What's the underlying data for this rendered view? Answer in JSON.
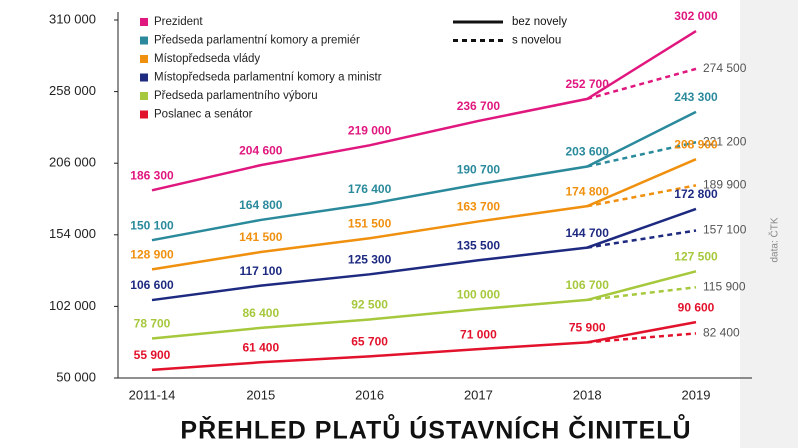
{
  "chart_data": {
    "type": "line",
    "title": "PŘEHLED PLATŮ ÚSTAVNÍCH ČINITELŮ",
    "source": "data: ČTK",
    "categories": [
      "2011-14",
      "2015",
      "2016",
      "2017",
      "2018",
      "2019"
    ],
    "ylim": [
      50000,
      310000
    ],
    "yticks": [
      {
        "value": 50000,
        "label": "50 000"
      },
      {
        "value": 102000,
        "label": "102 000"
      },
      {
        "value": 154000,
        "label": "154 000"
      },
      {
        "value": 206000,
        "label": "206 000"
      },
      {
        "value": 258000,
        "label": "258 000"
      },
      {
        "value": 310000,
        "label": "310 000"
      }
    ],
    "line_styles": [
      {
        "name": "bez novely",
        "dashed": false
      },
      {
        "name": "s novelou",
        "dashed": true
      }
    ],
    "series": [
      {
        "name": "Prezident",
        "color": "#e0177f",
        "values": [
          186300,
          204600,
          219000,
          236700,
          252700,
          302000
        ],
        "value_labels": [
          "186 300",
          "204 600",
          "219 000",
          "236 700",
          "252 700",
          "302 000"
        ],
        "reform_value": 274500,
        "reform_label": "274 500"
      },
      {
        "name": "Předseda parlamentní komory a premiér",
        "color": "#2a8a9c",
        "values": [
          150100,
          164800,
          176400,
          190700,
          203600,
          243300
        ],
        "value_labels": [
          "150 100",
          "164 800",
          "176 400",
          "190 700",
          "203 600",
          "243 300"
        ],
        "reform_value": 221200,
        "reform_label": "221 200"
      },
      {
        "name": "Místopředseda vlády",
        "color": "#f0900f",
        "values": [
          128900,
          141500,
          151500,
          163700,
          174800,
          208900
        ],
        "value_labels": [
          "128 900",
          "141 500",
          "151 500",
          "163 700",
          "174 800",
          "208 900"
        ],
        "reform_value": 189900,
        "reform_label": "189 900"
      },
      {
        "name": "Místopředseda parlamentní komory a ministr",
        "color": "#1e2a80",
        "values": [
          106600,
          117100,
          125300,
          135500,
          144700,
          172800
        ],
        "value_labels": [
          "106 600",
          "117 100",
          "125 300",
          "135 500",
          "144 700",
          "172 800"
        ],
        "reform_value": 157100,
        "reform_label": "157 100"
      },
      {
        "name": "Předseda parlamentního výboru",
        "color": "#a6c83c",
        "values": [
          78700,
          86400,
          92500,
          100000,
          106700,
          127500
        ],
        "value_labels": [
          "78 700",
          "86 400",
          "92 500",
          "100 000",
          "106 700",
          "127 500"
        ],
        "reform_value": 115900,
        "reform_label": "115 900"
      },
      {
        "name": "Poslanec a senátor",
        "color": "#e3122c",
        "values": [
          55900,
          61400,
          65700,
          71000,
          75900,
          90600
        ],
        "value_labels": [
          "55 900",
          "61 400",
          "65 700",
          "71 000",
          "75 900",
          "90 600"
        ],
        "reform_value": 82400,
        "reform_label": "82 400"
      }
    ]
  }
}
